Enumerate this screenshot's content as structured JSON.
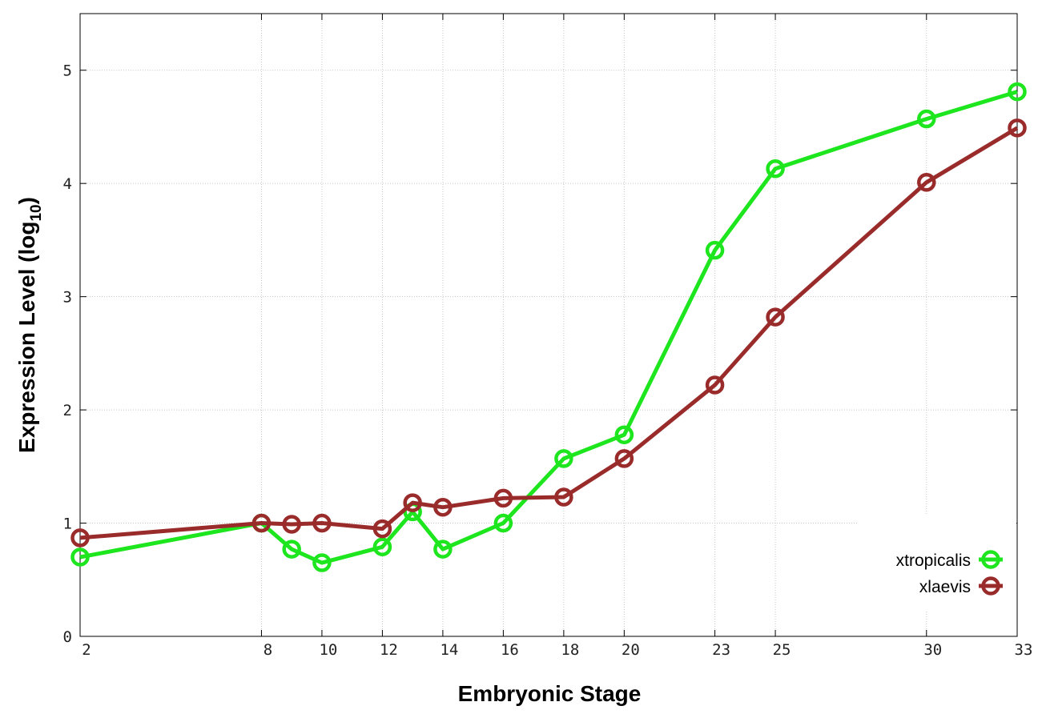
{
  "chart_data": {
    "type": "line",
    "title": "",
    "xlabel": "Embryonic Stage",
    "ylabel": {
      "text": "Expression Level (log",
      "subscript": "10",
      "suffix": ")"
    },
    "x": [
      2,
      8,
      9,
      10,
      12,
      13,
      14,
      16,
      18,
      20,
      23,
      25,
      30,
      33
    ],
    "x_tick_labels": [
      "2",
      "8",
      "10",
      "12",
      "14",
      "16",
      "18",
      "20",
      "23",
      "25",
      "30",
      "33"
    ],
    "x_tick_values": [
      2,
      8,
      10,
      12,
      14,
      16,
      18,
      20,
      23,
      25,
      30,
      33
    ],
    "y_tick_labels": [
      "0",
      "1",
      "2",
      "3",
      "4",
      "5"
    ],
    "y_tick_values": [
      0,
      1,
      2,
      3,
      4,
      5
    ],
    "xlim": [
      2,
      33
    ],
    "ylim": [
      0,
      5.5
    ],
    "grid": true,
    "legend_position": "bottom-right",
    "series": [
      {
        "name": "xtropicalis",
        "color": "#1ee61e",
        "values": [
          0.7,
          1.0,
          0.77,
          0.65,
          0.79,
          1.1,
          0.77,
          1.0,
          1.57,
          1.78,
          3.41,
          4.13,
          4.57,
          4.81
        ]
      },
      {
        "name": "xlaevis",
        "color": "#9a2b2b",
        "values": [
          0.87,
          1.0,
          0.99,
          1.0,
          0.95,
          1.18,
          1.14,
          1.22,
          1.23,
          1.57,
          2.22,
          2.82,
          4.01,
          4.49
        ]
      }
    ]
  }
}
